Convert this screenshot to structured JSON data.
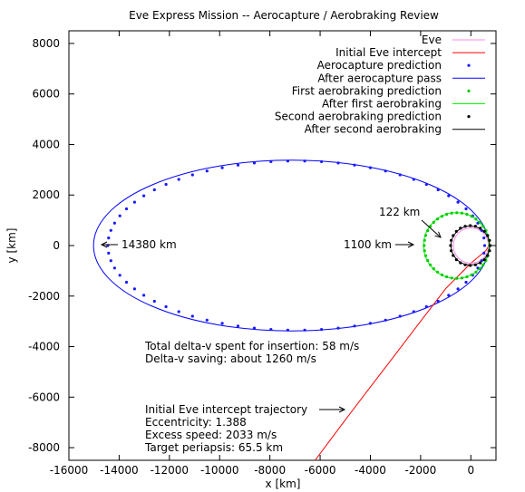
{
  "chart_data": {
    "type": "line",
    "title": "Eve Express Mission -- Aerocapture / Aerobraking Review",
    "xlabel": "x [km]",
    "ylabel": "y [km]",
    "xlim": [
      -16000,
      1000
    ],
    "ylim": [
      -8500,
      8500
    ],
    "xticks": [
      -16000,
      -14000,
      -12000,
      -10000,
      -8000,
      -6000,
      -4000,
      -2000,
      0
    ],
    "yticks": [
      -8000,
      -6000,
      -4000,
      -2000,
      0,
      2000,
      4000,
      6000,
      8000
    ],
    "xtick_labels": [
      "-16000",
      "-14000",
      "-12000",
      "-10000",
      "-8000",
      "-6000",
      "-4000",
      "-2000",
      "0"
    ],
    "ytick_labels": [
      "-8000",
      "-6000",
      "-4000",
      "-2000",
      "0",
      "2000",
      "4000",
      "6000",
      "8000"
    ],
    "grid": false,
    "legend_position": "top-right",
    "series": [
      {
        "name": "Eve",
        "style": "line",
        "color": "#ff88ee",
        "kind": "circle",
        "center": [
          0,
          0
        ],
        "radius": 700
      },
      {
        "name": "Initial Eve intercept",
        "style": "line",
        "color": "#ff0000",
        "kind": "path",
        "points": [
          [
            -6200,
            -8500
          ],
          [
            -5000,
            -6900
          ],
          [
            -4000,
            -5600
          ],
          [
            -3000,
            -4300
          ],
          [
            -2000,
            -3000
          ],
          [
            -1000,
            -1700
          ],
          [
            0,
            -700
          ],
          [
            600,
            -200
          ],
          [
            720,
            0
          ]
        ]
      },
      {
        "name": "Aerocapture prediction",
        "style": "points",
        "color": "#1a1aff",
        "kind": "ellipse",
        "center": [
          -6950,
          0
        ],
        "a": 7500,
        "b": 3350,
        "n": 70
      },
      {
        "name": "After aerocapture pass",
        "style": "line",
        "color": "#0000ff",
        "kind": "ellipse",
        "center": [
          -7150,
          0
        ],
        "a": 7870,
        "b": 3380
      },
      {
        "name": "First aerobraking prediction",
        "style": "points",
        "color": "#00cc00",
        "kind": "circle",
        "center": [
          -560,
          0
        ],
        "radius": 1300,
        "n": 40
      },
      {
        "name": "After first aerobraking",
        "style": "line",
        "color": "#00ff00",
        "kind": "circle",
        "center": [
          -580,
          0
        ],
        "radius": 1300
      },
      {
        "name": "Second aerobraking prediction",
        "style": "points",
        "color": "#000000",
        "kind": "circle",
        "center": [
          -20,
          0
        ],
        "radius": 790,
        "n": 24
      },
      {
        "name": "After second aerobraking",
        "style": "line",
        "color": "#000000",
        "kind": "circle",
        "center": [
          -20,
          0
        ],
        "radius": 770
      }
    ],
    "annotations": [
      {
        "text": "14380 km",
        "arrow": {
          "from": [
            -14000,
            0
          ],
          "to": [
            -14380,
            0
          ]
        }
      },
      {
        "text": "1100 km",
        "arrow": {
          "from": [
            -1900,
            0
          ],
          "to": [
            -1880,
            0
          ]
        }
      },
      {
        "text": "122 km",
        "arrow": {
          "from": [
            -1000,
            1350
          ],
          "to": [
            -720,
            250
          ]
        }
      },
      {
        "text": "Total delta-v spent for insertion: 58 m/s"
      },
      {
        "text": "Delta-v saving: about 1260 m/s"
      },
      {
        "text": "Initial Eve intercept trajectory",
        "arrow": {
          "from": [
            -4900,
            -6500
          ],
          "to": [
            -4500,
            -6500
          ]
        }
      },
      {
        "text": "Eccentricity: 1.388"
      },
      {
        "text": "Excess speed: 2033 m/s"
      },
      {
        "text": "Target periapsis: 65.5 km"
      }
    ]
  }
}
